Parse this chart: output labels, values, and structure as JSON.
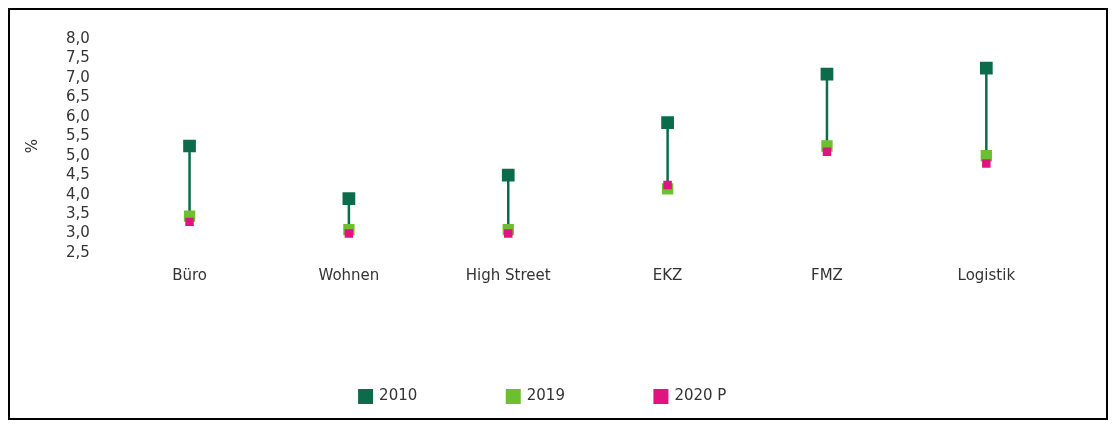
{
  "chart_data": {
    "type": "scatter",
    "ylabel": "%",
    "categories": [
      "Büro",
      "Wohnen",
      "High Street",
      "EKZ",
      "FMZ",
      "Logistik"
    ],
    "series": [
      {
        "name": "2010",
        "color": "#0b6b4a",
        "values": [
          5.25,
          3.9,
          4.5,
          5.85,
          7.1,
          7.25
        ]
      },
      {
        "name": "2019",
        "color": "#6cbf2f",
        "values": [
          3.45,
          3.1,
          3.1,
          4.15,
          5.25,
          5.0
        ]
      },
      {
        "name": "2020 P",
        "color": "#e0137f",
        "values": [
          3.3,
          3.0,
          3.0,
          4.25,
          5.1,
          4.8
        ]
      }
    ],
    "ylim": [
      2.5,
      8.0
    ],
    "yticks": [
      {
        "value": 2.5,
        "label": "2,5"
      },
      {
        "value": 3.0,
        "label": "3,0"
      },
      {
        "value": 3.5,
        "label": "3,5"
      },
      {
        "value": 4.0,
        "label": "4,0"
      },
      {
        "value": 4.5,
        "label": "4,5"
      },
      {
        "value": 5.0,
        "label": "5,0"
      },
      {
        "value": 5.5,
        "label": "5,5"
      },
      {
        "value": 6.0,
        "label": "6,0"
      },
      {
        "value": 6.5,
        "label": "6,5"
      },
      {
        "value": 7.0,
        "label": "7,0"
      },
      {
        "value": 7.5,
        "label": "7,5"
      },
      {
        "value": 8.0,
        "label": "8,0"
      }
    ],
    "grid": false,
    "legend": "bottom",
    "marker": "square"
  }
}
